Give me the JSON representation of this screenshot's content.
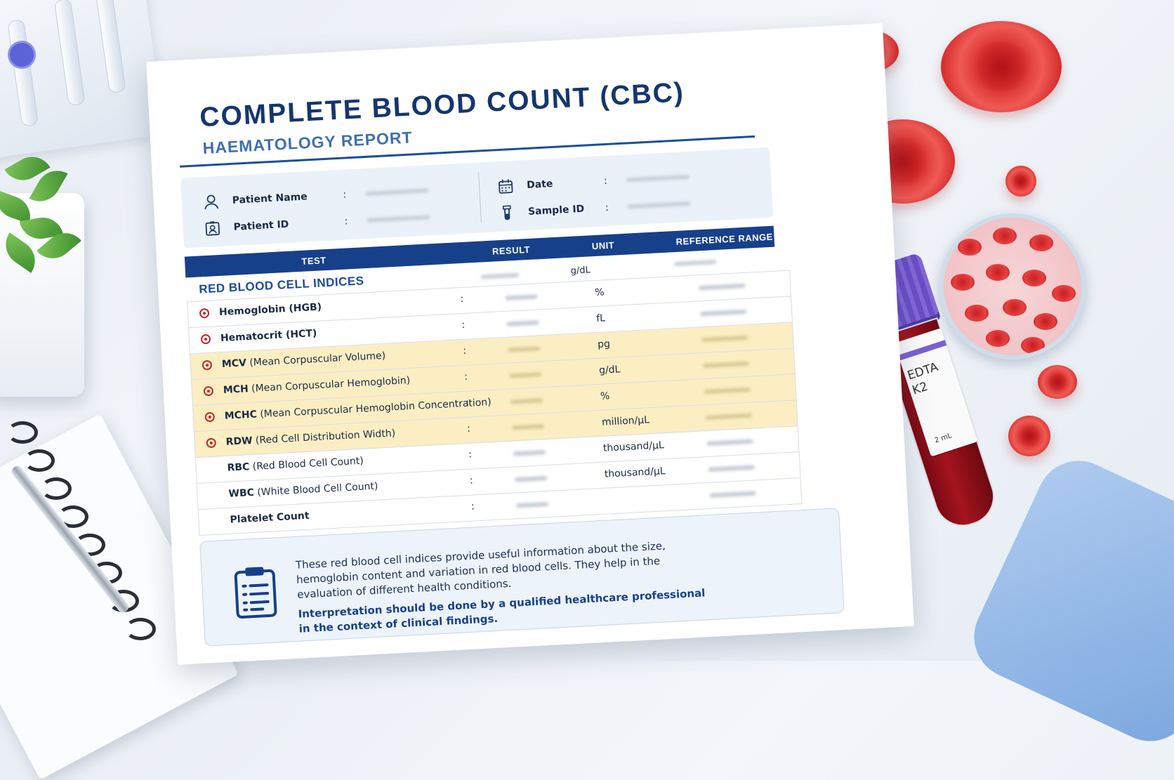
{
  "report": {
    "title": "COMPLETE BLOOD COUNT (CBC)",
    "subtitle": "HAEMATOLOGY REPORT"
  },
  "patient_info": {
    "patient_name_label": "Patient Name",
    "patient_id_label": "Patient ID",
    "date_label": "Date",
    "sample_id_label": "Sample ID",
    "separator": ":"
  },
  "table": {
    "headers": {
      "test": "TEST",
      "result": "RESULT",
      "unit": "UNIT",
      "reference_range": "REFERENCE RANGE"
    },
    "section": {
      "label": "RED BLOOD CELL INDICES",
      "unit": "g/dL"
    },
    "rows": [
      {
        "abbr": "Hemoglobin (HGB)",
        "full": "",
        "unit": "%",
        "highlight": false,
        "icon": "blood-cell-icon"
      },
      {
        "abbr": "Hematocrit (HCT)",
        "full": "",
        "unit": "fL",
        "highlight": false,
        "icon": "blood-cell-icon"
      },
      {
        "abbr": "MCV",
        "full": "(Mean Corpuscular Volume)",
        "unit": "pg",
        "highlight": true,
        "icon": "blood-cell-icon"
      },
      {
        "abbr": "MCH",
        "full": "(Mean Corpuscular Hemoglobin)",
        "unit": "g/dL",
        "highlight": true,
        "icon": "blood-cell-icon"
      },
      {
        "abbr": "MCHC",
        "full": "(Mean Corpuscular Hemoglobin Concentration)",
        "unit": "%",
        "highlight": true,
        "icon": "blood-cell-icon"
      },
      {
        "abbr": "RDW",
        "full": "(Red Cell Distribution Width)",
        "unit": "million/µL",
        "highlight": true,
        "icon": "blood-cell-icon"
      },
      {
        "abbr": "RBC",
        "full": "(Red Blood Cell Count)",
        "unit": "thousand/µL",
        "highlight": false,
        "icon": ""
      },
      {
        "abbr": "WBC",
        "full": "(White Blood Cell Count)",
        "unit": "thousand/µL",
        "highlight": false,
        "icon": ""
      },
      {
        "abbr": "Platelet Count",
        "full": "",
        "unit": "",
        "highlight": false,
        "icon": ""
      }
    ]
  },
  "note": {
    "text": "These red blood cell indices provide useful information about the size, hemoglobin content and variation in red blood cells. They help in the evaluation of different health conditions.",
    "emphasis": "Interpretation should be done by a qualified healthcare professional in the context of clinical findings."
  },
  "tube_label": {
    "line1": "EDTA",
    "line2": "K2",
    "volume": "2 mL"
  },
  "colors": {
    "primary_navy": "#17408a",
    "highlight_yellow": "#fbeec3",
    "blood_red": "#d42a2a",
    "cap_purple": "#6a4fc4"
  }
}
